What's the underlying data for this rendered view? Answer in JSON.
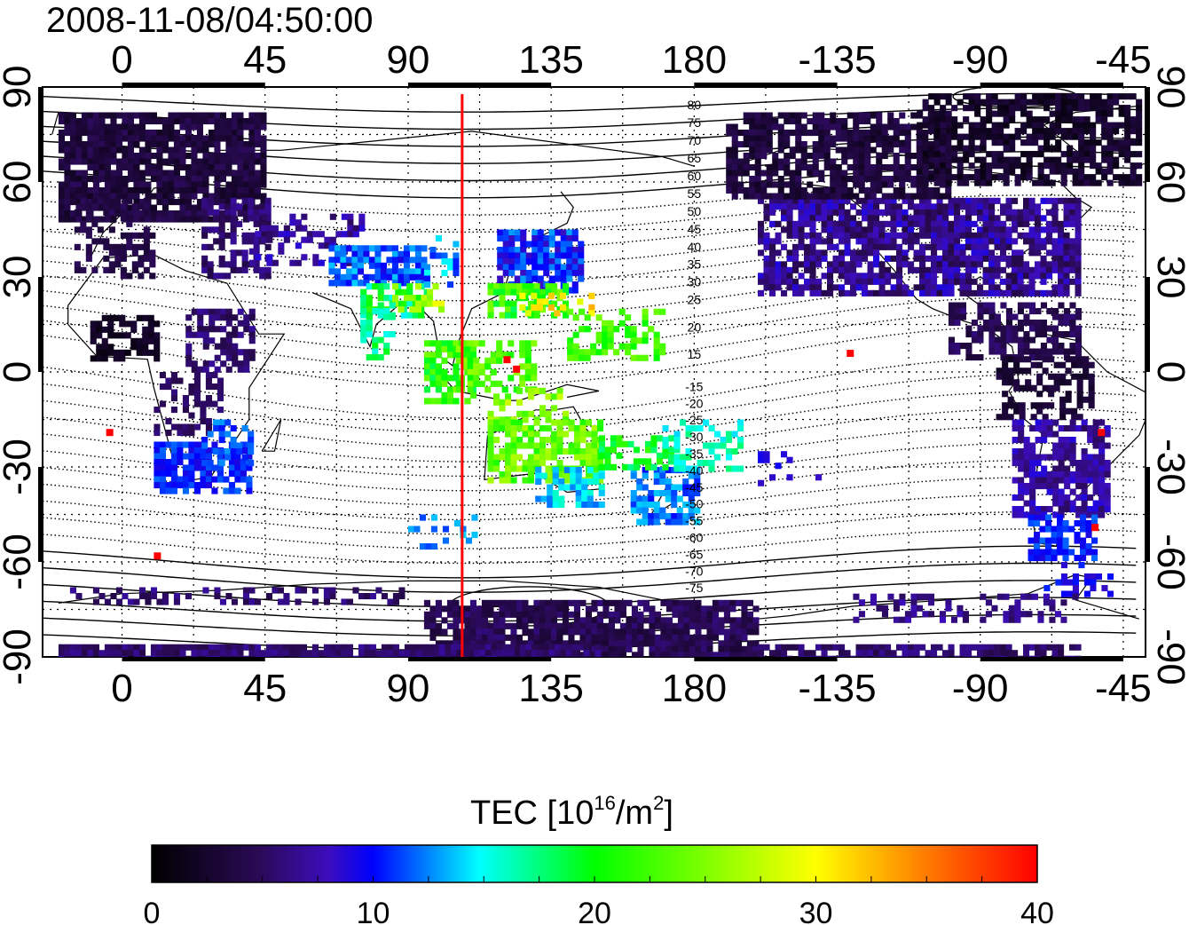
{
  "map": {
    "timestamp": "2008-11-08/04:50:00",
    "lon_ticks_top": [
      "0",
      "45",
      "90",
      "135",
      "180",
      "-135",
      "-90",
      "-45"
    ],
    "lon_ticks_bottom": [
      "0",
      "45",
      "90",
      "135",
      "180",
      "-135",
      "-90",
      "-45"
    ],
    "lat_ticks_left": [
      "90",
      "60",
      "30",
      "0",
      "-30",
      "-60",
      "-90"
    ],
    "lat_ticks_right": [
      "90",
      "60",
      "30",
      "0",
      "-30",
      "-60",
      "-90"
    ],
    "contour_labels_north": [
      "80",
      "75",
      "70",
      "65",
      "60",
      "55",
      "50",
      "45",
      "40",
      "35",
      "30",
      "25",
      "20",
      "15"
    ],
    "contour_labels_south": [
      "-15",
      "-20",
      "-25",
      "-30",
      "-35",
      "-40",
      "-45",
      "-50",
      "-55",
      "-60",
      "-65",
      "-70",
      "-75"
    ],
    "red_line_longitude": 107,
    "lon_range": [
      -25,
      322
    ],
    "lat_range": [
      -90,
      90
    ]
  },
  "colorbar": {
    "title": "TEC  [10",
    "title_sup": "16",
    "title_mid": "/m",
    "title_sup2": "2",
    "title_end": "]",
    "ticks": [
      "0",
      "10",
      "20",
      "30",
      "40"
    ],
    "range": [
      0,
      40
    ],
    "colors": [
      "#000000",
      "#2a0a55",
      "#3c0dbd",
      "#0000ff",
      "#00ffff",
      "#00ff00",
      "#ffff00",
      "#ff8000",
      "#ff0000"
    ]
  }
}
